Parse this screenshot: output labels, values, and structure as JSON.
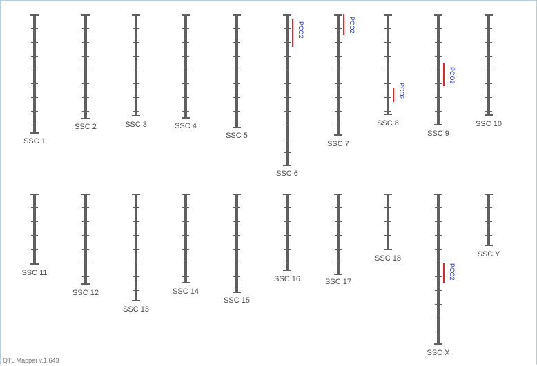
{
  "footer": {
    "text": "QTL Mapper v.1.643"
  },
  "colors": {
    "chromosome": "#5f5f5f",
    "qtl_bar": "#e8222a",
    "qtl_label": "#1f2fd6",
    "chromosome_label": "#4a4a4a",
    "frame_border": "#b9cfe0"
  },
  "chromosomes": [
    {
      "name": "SSC 1",
      "row": 1,
      "qtls": []
    },
    {
      "name": "SSC 2",
      "row": 1,
      "qtls": []
    },
    {
      "name": "SSC 3",
      "row": 1,
      "qtls": []
    },
    {
      "name": "SSC 4",
      "row": 1,
      "qtls": []
    },
    {
      "name": "SSC 5",
      "row": 1,
      "qtls": []
    },
    {
      "name": "SSC 6",
      "row": 1,
      "qtls": [
        {
          "label": "PCO2"
        }
      ]
    },
    {
      "name": "SSC 7",
      "row": 1,
      "qtls": [
        {
          "label": "PCO2"
        }
      ]
    },
    {
      "name": "SSC 8",
      "row": 1,
      "qtls": [
        {
          "label": "PCO2"
        }
      ]
    },
    {
      "name": "SSC 9",
      "row": 1,
      "qtls": [
        {
          "label": "PCO2"
        }
      ]
    },
    {
      "name": "SSC 10",
      "row": 1,
      "qtls": []
    },
    {
      "name": "SSC 11",
      "row": 2,
      "qtls": []
    },
    {
      "name": "SSC 12",
      "row": 2,
      "qtls": []
    },
    {
      "name": "SSC 13",
      "row": 2,
      "qtls": []
    },
    {
      "name": "SSC 14",
      "row": 2,
      "qtls": []
    },
    {
      "name": "SSC 15",
      "row": 2,
      "qtls": []
    },
    {
      "name": "SSC 16",
      "row": 2,
      "qtls": []
    },
    {
      "name": "SSC 17",
      "row": 2,
      "qtls": []
    },
    {
      "name": "SSC 18",
      "row": 2,
      "qtls": []
    },
    {
      "name": "SSC X",
      "row": 2,
      "qtls": [
        {
          "label": "PCO2"
        }
      ]
    },
    {
      "name": "SSC Y",
      "row": 2,
      "qtls": []
    }
  ]
}
